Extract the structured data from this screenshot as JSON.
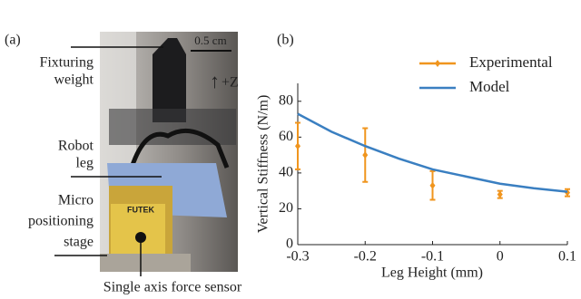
{
  "figure_a": {
    "panel_label": "(a)",
    "labels": [
      "Fixturing",
      "weight",
      "Robot",
      "leg",
      "Micro",
      "positioning",
      "stage",
      "Single axis force sensor"
    ],
    "scale_bar": "0.5 cm",
    "axis_arrow": "+Z",
    "brand": "FUTEK"
  },
  "chart_data": {
    "type": "line",
    "panel_label": "(b)",
    "y_label": "Vertical Stiffness (N/m)",
    "x_label": "Leg Height (mm)",
    "xlim": [
      -0.3,
      0.1
    ],
    "xticks": [
      -0.3,
      -0.2,
      -0.1,
      0,
      0.1
    ],
    "ylim": [
      0,
      90
    ],
    "yticks": [
      0,
      20,
      40,
      60,
      80
    ],
    "legend": "upper right",
    "series": [
      {
        "name": "Experimental",
        "color": "#f0951e",
        "x": [
          -0.3,
          -0.2,
          -0.1,
          0,
          0.1
        ],
        "values": [
          55,
          50,
          33,
          28,
          29
        ],
        "errors": [
          13,
          15,
          8,
          2,
          2
        ]
      },
      {
        "name": "Model",
        "color": "#3a7fc1",
        "x": [
          -0.3,
          -0.25,
          -0.2,
          -0.15,
          -0.1,
          -0.05,
          0,
          0.05,
          0.1
        ],
        "values": [
          73,
          63,
          55,
          48,
          42,
          38,
          34,
          31.5,
          29.5
        ]
      }
    ]
  }
}
